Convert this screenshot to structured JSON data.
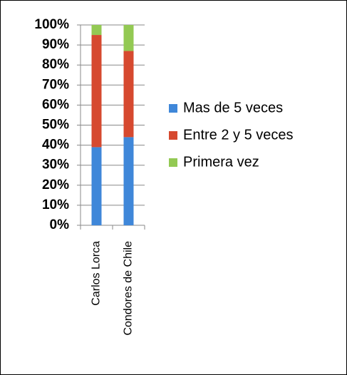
{
  "chart_data": {
    "type": "stacked_bar",
    "categories": [
      "Carlos Lorca",
      "Condores de Chile"
    ],
    "series": [
      {
        "name": "Mas de 5 veces",
        "color": "#3f87d9",
        "values": [
          39,
          44
        ]
      },
      {
        "name": "Entre 2 y 5 veces",
        "color": "#d6492f",
        "values": [
          56,
          43
        ]
      },
      {
        "name": "Primera vez",
        "color": "#93c953",
        "values": [
          5,
          13
        ]
      }
    ],
    "ylim": [
      0,
      100
    ],
    "yticks": [
      {
        "value": 0,
        "label": "0%"
      },
      {
        "value": 10,
        "label": "10%"
      },
      {
        "value": 20,
        "label": "20%"
      },
      {
        "value": 30,
        "label": "30%"
      },
      {
        "value": 40,
        "label": "40%"
      },
      {
        "value": 50,
        "label": "50%"
      },
      {
        "value": 60,
        "label": "60%"
      },
      {
        "value": 70,
        "label": "70%"
      },
      {
        "value": 80,
        "label": "80%"
      },
      {
        "value": 90,
        "label": "90%"
      },
      {
        "value": 100,
        "label": "100%"
      }
    ],
    "legend": "right"
  }
}
